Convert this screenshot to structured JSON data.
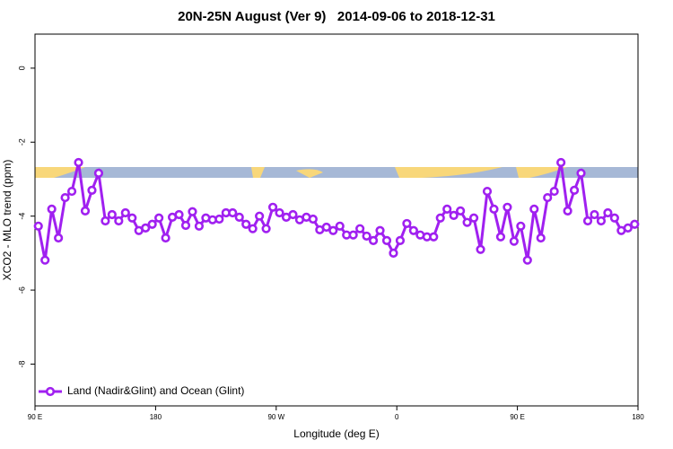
{
  "chart_data": {
    "type": "line",
    "title": "20N-25N August (Ver 9)   2014-09-06 to 2018-12-31",
    "x_label": "Longitude (deg E)",
    "y_label": "XCO2 - MLO trend (ppm)",
    "legend_position": "bottom-left",
    "xlim": [
      90,
      540
    ],
    "ylim": [
      -9.13,
      0.92
    ],
    "xticks": [
      {
        "value": 90,
        "label": "90 E"
      },
      {
        "value": 180,
        "label": "180"
      },
      {
        "value": 270,
        "label": "90 W"
      },
      {
        "value": 360,
        "label": "0"
      },
      {
        "value": 450,
        "label": "90 E"
      },
      {
        "value": 540,
        "label": "180"
      }
    ],
    "yticks": [
      0,
      -2,
      -4,
      -6,
      -8
    ],
    "x": [
      92.5,
      97.5,
      102.5,
      107.5,
      112.5,
      117.5,
      122.5,
      127.5,
      132.5,
      137.5,
      142.5,
      147.5,
      152.5,
      157.5,
      162.5,
      167.5,
      172.5,
      177.5,
      182.5,
      187.5,
      192.5,
      197.5,
      202.5,
      207.5,
      212.5,
      217.5,
      222.5,
      227.5,
      232.5,
      237.5,
      242.5,
      247.5,
      252.5,
      257.5,
      262.5,
      267.5,
      272.5,
      277.5,
      282.5,
      287.5,
      292.5,
      297.5,
      302.5,
      307.5,
      312.5,
      317.5,
      322.5,
      327.5,
      332.5,
      337.5,
      342.5,
      347.5,
      352.5,
      357.5,
      362.5,
      367.5,
      372.5,
      377.5,
      382.5,
      387.5,
      392.5,
      397.5,
      402.5,
      407.5,
      412.5,
      417.5,
      422.5,
      427.5,
      432.5,
      437.5,
      442.5,
      447.5,
      452.5,
      457.5,
      462.5,
      467.5,
      472.5,
      477.5,
      482.5,
      487.5,
      492.5,
      497.5,
      502.5,
      507.5,
      512.5,
      517.5,
      522.5,
      527.5,
      532.5,
      537.5
    ],
    "series": [
      {
        "name": "Land (Nadir&Glint) and Ocean (Glint)",
        "color": "#a020f0",
        "values": [
          -4.27,
          -5.19,
          -3.81,
          -4.59,
          -3.5,
          -3.33,
          -2.55,
          -3.86,
          -3.3,
          -2.84,
          -4.13,
          -3.96,
          -4.13,
          -3.91,
          -4.05,
          -4.39,
          -4.32,
          -4.22,
          -4.05,
          -4.59,
          -4.03,
          -3.96,
          -4.25,
          -3.88,
          -4.27,
          -4.05,
          -4.1,
          -4.08,
          -3.91,
          -3.91,
          -4.03,
          -4.22,
          -4.34,
          -4.0,
          -4.34,
          -3.76,
          -3.91,
          -4.03,
          -3.96,
          -4.1,
          -4.03,
          -4.08,
          -4.37,
          -4.3,
          -4.39,
          -4.27,
          -4.51,
          -4.51,
          -4.34,
          -4.54,
          -4.66,
          -4.39,
          -4.66,
          -5.0,
          -4.66,
          -4.2,
          -4.39,
          -4.51,
          -4.56,
          -4.56,
          -4.05,
          -3.81,
          -3.98,
          -3.86,
          -4.17,
          -4.05,
          -4.9,
          -3.33,
          -3.81,
          -4.56,
          -3.76,
          -4.68,
          -4.27,
          -5.19,
          -3.81,
          -4.59,
          -3.5,
          -3.33,
          -2.55,
          -3.86,
          -3.3,
          -2.84,
          -4.13,
          -3.96,
          -4.13,
          -3.91,
          -4.05,
          -4.39,
          -4.32,
          -4.22
        ]
      }
    ]
  }
}
